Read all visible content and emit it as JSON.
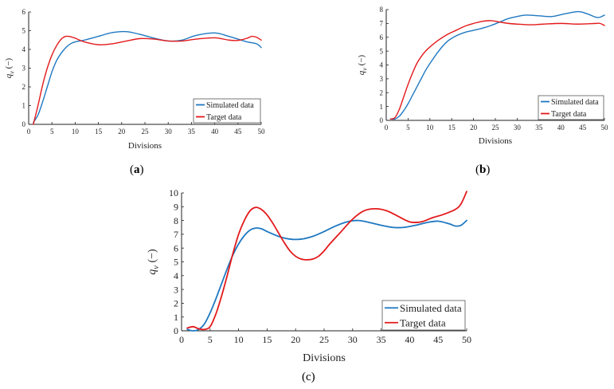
{
  "colors": {
    "simulated": "#1f78c1",
    "target": "#e31a1c",
    "axis": "#222222"
  },
  "chart_data": [
    {
      "type": "line",
      "panel": "a",
      "caption_open": "(",
      "caption_letter": "a",
      "caption_close": ")",
      "xlabel": "Divisions",
      "ylabel": "q",
      "ylabel_sub": "v",
      "ylabel_unit": "(−)",
      "xlim": [
        0,
        50
      ],
      "ylim": [
        0,
        6
      ],
      "xticks": [
        0,
        5,
        10,
        15,
        20,
        25,
        30,
        35,
        40,
        45,
        50
      ],
      "yticks": [
        0,
        1,
        2,
        3,
        4,
        5,
        6
      ],
      "legend_position": "lower-right",
      "series": [
        {
          "name": "Simulated data",
          "color": "#1f78c1",
          "x": [
            1,
            2,
            3,
            4,
            5,
            6,
            7,
            8,
            9,
            10,
            12,
            15,
            18,
            21,
            24,
            27,
            30,
            33,
            36,
            40,
            43,
            45,
            47,
            49,
            50
          ],
          "y": [
            0.1,
            0.5,
            1.2,
            2.0,
            2.8,
            3.4,
            3.8,
            4.1,
            4.3,
            4.4,
            4.5,
            4.7,
            4.9,
            4.95,
            4.8,
            4.6,
            4.45,
            4.5,
            4.75,
            4.88,
            4.7,
            4.55,
            4.4,
            4.3,
            4.1
          ]
        },
        {
          "name": "Target data",
          "color": "#e31a1c",
          "x": [
            1,
            2,
            3,
            4,
            5,
            6,
            7,
            8,
            9,
            10,
            12,
            15,
            18,
            21,
            24,
            27,
            30,
            33,
            36,
            40,
            43,
            45,
            47,
            48,
            49,
            50
          ],
          "y": [
            0.0,
            1.0,
            2.1,
            3.0,
            3.7,
            4.2,
            4.55,
            4.7,
            4.68,
            4.6,
            4.4,
            4.25,
            4.3,
            4.45,
            4.58,
            4.55,
            4.45,
            4.45,
            4.55,
            4.62,
            4.5,
            4.48,
            4.6,
            4.7,
            4.65,
            4.5
          ]
        }
      ]
    },
    {
      "type": "line",
      "panel": "b",
      "caption_open": "(",
      "caption_letter": "b",
      "caption_close": ")",
      "xlabel": "Divisions",
      "ylabel": "q",
      "ylabel_sub": "v",
      "ylabel_unit": "(−)",
      "xlim": [
        0,
        50
      ],
      "ylim": [
        0,
        8
      ],
      "xticks": [
        0,
        5,
        10,
        15,
        20,
        25,
        30,
        35,
        40,
        45,
        50
      ],
      "yticks": [
        0,
        1,
        2,
        3,
        4,
        5,
        6,
        7,
        8
      ],
      "legend_position": "lower-right",
      "series": [
        {
          "name": "Simulated data",
          "color": "#1f78c1",
          "x": [
            1,
            2,
            3,
            4,
            5,
            6,
            7,
            8,
            9,
            10,
            12,
            14,
            16,
            18,
            20,
            22,
            24,
            26,
            28,
            30,
            32,
            35,
            38,
            41,
            44,
            46,
            48,
            49,
            50
          ],
          "y": [
            0.1,
            0.1,
            0.3,
            0.7,
            1.2,
            1.8,
            2.4,
            3.0,
            3.6,
            4.1,
            5.0,
            5.7,
            6.1,
            6.35,
            6.5,
            6.65,
            6.85,
            7.1,
            7.35,
            7.5,
            7.6,
            7.55,
            7.5,
            7.7,
            7.85,
            7.7,
            7.45,
            7.45,
            7.6
          ]
        },
        {
          "name": "Target data",
          "color": "#e31a1c",
          "x": [
            1,
            2,
            3,
            4,
            5,
            6,
            7,
            8,
            9,
            10,
            12,
            14,
            16,
            18,
            20,
            22,
            24,
            26,
            28,
            30,
            33,
            36,
            40,
            44,
            48,
            49,
            50
          ],
          "y": [
            0.1,
            0.2,
            0.8,
            1.7,
            2.6,
            3.4,
            4.1,
            4.6,
            5.0,
            5.3,
            5.8,
            6.2,
            6.5,
            6.8,
            7.0,
            7.15,
            7.2,
            7.1,
            7.0,
            6.95,
            6.9,
            6.95,
            7.0,
            6.95,
            7.0,
            7.0,
            6.85
          ]
        }
      ]
    },
    {
      "type": "line",
      "panel": "c",
      "caption_open": "(",
      "caption_letter": "c",
      "caption_close": ")",
      "xlabel": "Divisions",
      "ylabel": "q",
      "ylabel_sub": "v",
      "ylabel_unit": "(−)",
      "xlim": [
        0,
        50
      ],
      "ylim": [
        0,
        10
      ],
      "xticks": [
        0,
        5,
        10,
        15,
        20,
        25,
        30,
        35,
        40,
        45,
        50
      ],
      "yticks": [
        0,
        1,
        2,
        3,
        4,
        5,
        6,
        7,
        8,
        9,
        10
      ],
      "legend_position": "lower-right",
      "series": [
        {
          "name": "Simulated data",
          "color": "#1f78c1",
          "x": [
            1,
            2,
            3,
            4,
            5,
            6,
            7,
            8,
            9,
            10,
            11,
            12,
            13,
            14,
            15,
            17,
            19,
            21,
            23,
            25,
            27,
            29,
            31,
            33,
            35,
            37,
            39,
            41,
            43,
            45,
            47,
            48,
            49,
            50
          ],
          "y": [
            0.1,
            0.0,
            0.1,
            0.5,
            1.3,
            2.3,
            3.4,
            4.5,
            5.5,
            6.3,
            6.9,
            7.3,
            7.45,
            7.4,
            7.2,
            6.85,
            6.65,
            6.65,
            6.85,
            7.2,
            7.6,
            7.9,
            8.0,
            7.85,
            7.65,
            7.5,
            7.5,
            7.65,
            7.85,
            7.95,
            7.75,
            7.6,
            7.65,
            8.0
          ]
        },
        {
          "name": "Target data",
          "color": "#e31a1c",
          "x": [
            1,
            2,
            3,
            4,
            5,
            6,
            7,
            8,
            9,
            10,
            11,
            12,
            13,
            14,
            15,
            16,
            17,
            18,
            19,
            20,
            21,
            22,
            23,
            24,
            25,
            26,
            28,
            30,
            32,
            34,
            36,
            38,
            40,
            42,
            44,
            46,
            48,
            49,
            50
          ],
          "y": [
            0.2,
            0.3,
            0.15,
            0.1,
            0.3,
            1.2,
            2.5,
            4.0,
            5.6,
            7.0,
            8.0,
            8.7,
            8.95,
            8.8,
            8.4,
            7.8,
            7.1,
            6.4,
            5.8,
            5.4,
            5.2,
            5.15,
            5.2,
            5.4,
            5.8,
            6.3,
            7.2,
            8.1,
            8.7,
            8.85,
            8.7,
            8.3,
            7.9,
            7.9,
            8.2,
            8.45,
            8.8,
            9.2,
            10.1
          ]
        }
      ]
    }
  ]
}
